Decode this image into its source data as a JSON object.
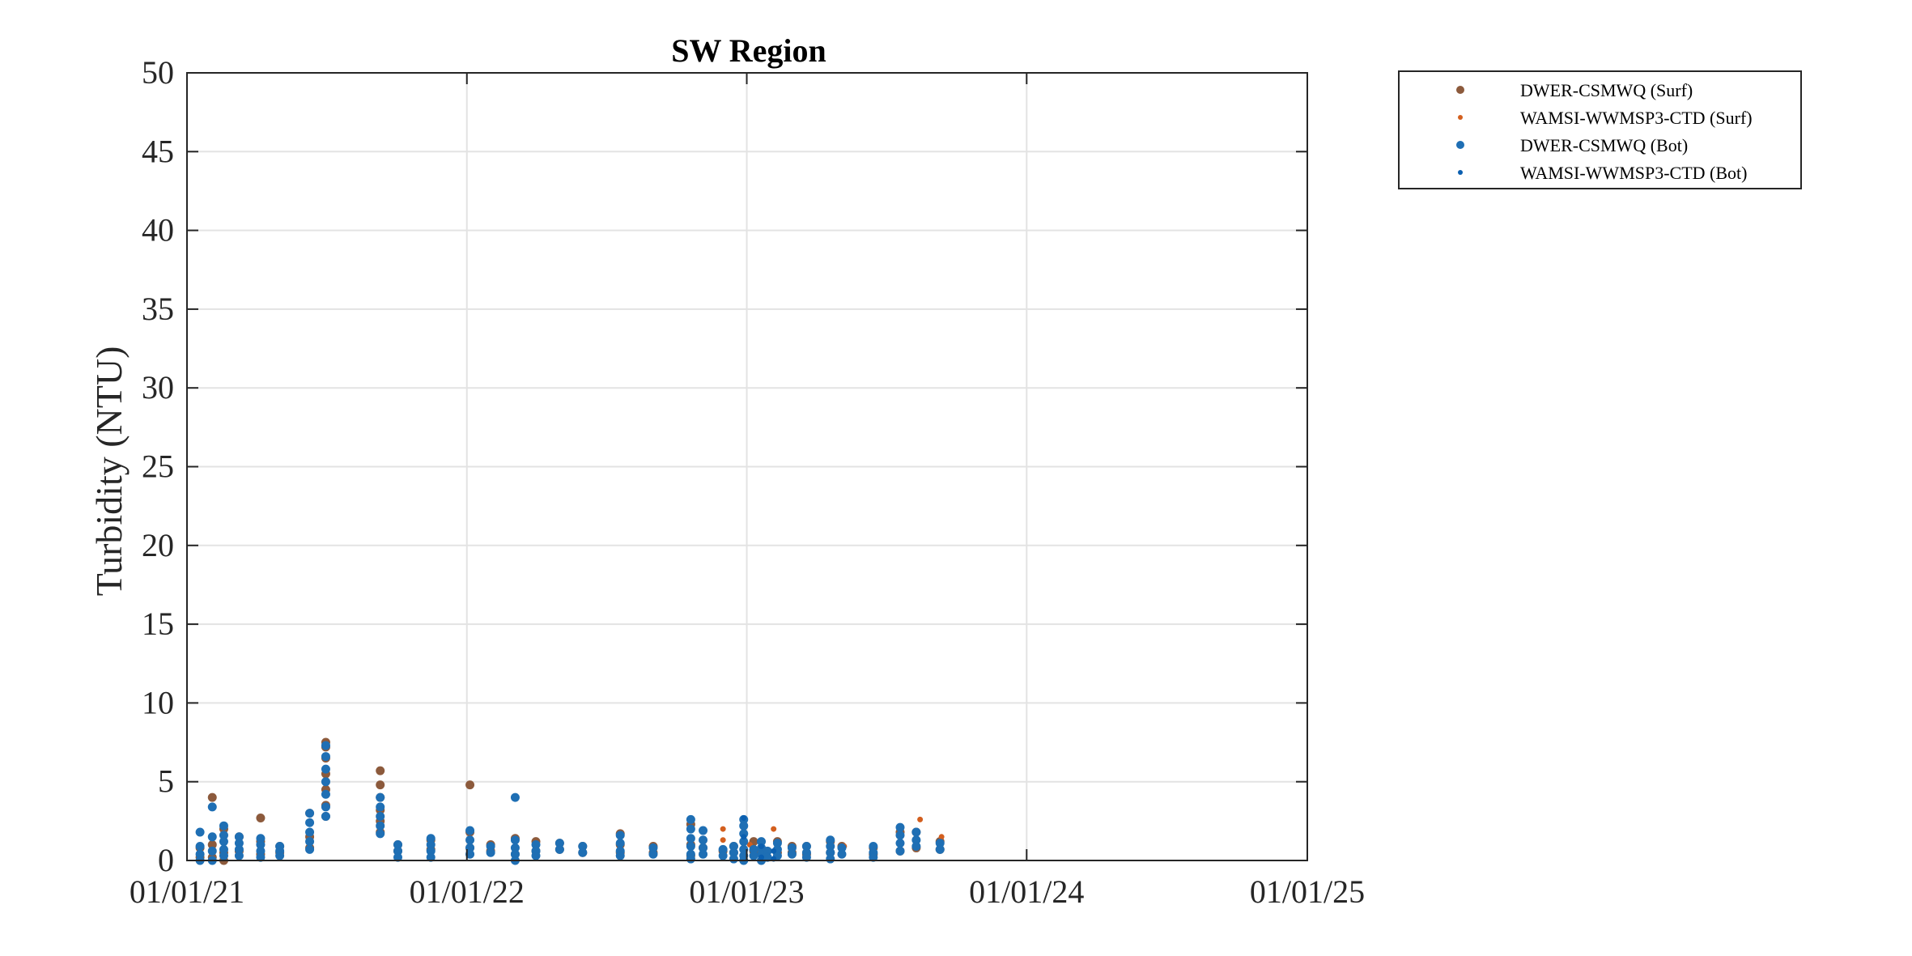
{
  "chart_data": {
    "type": "scatter",
    "title": "SW Region",
    "xlabel": "",
    "ylabel": "Turbidity (NTU)",
    "xlim": [
      "2021-01-01",
      "2025-01-01"
    ],
    "ylim": [
      0,
      50
    ],
    "xticks": [
      "2021-01-01",
      "2022-01-01",
      "2023-01-01",
      "2024-01-01",
      "2025-01-01"
    ],
    "xtick_labels": [
      "01/01/21",
      "01/01/22",
      "01/01/23",
      "01/01/24",
      "01/01/25"
    ],
    "yticks": [
      0,
      5,
      10,
      15,
      20,
      25,
      30,
      35,
      40,
      45,
      50
    ],
    "grid": true,
    "legend_position": "outside-top-right",
    "legend": [
      {
        "label": "DWER-CSMWQ (Surf)",
        "color": "#8c5a3c",
        "marker": "large-dot"
      },
      {
        "label": "WAMSI-WWMSP3-CTD (Surf)",
        "color": "#d35f1e",
        "marker": "small-dot"
      },
      {
        "label": "DWER-CSMWQ (Bot)",
        "color": "#1f6fb4",
        "marker": "large-dot"
      },
      {
        "label": "WAMSI-WWMSP3-CTD (Bot)",
        "color": "#0b5fb0",
        "marker": "small-dot"
      }
    ],
    "series": [
      {
        "name": "DWER-CSMWQ (Surf)",
        "points": [
          [
            "2021-01-18",
            [
              0.2,
              0.8
            ]
          ],
          [
            "2021-02-03",
            [
              4.0,
              1.0,
              0.2
            ]
          ],
          [
            "2021-02-18",
            [
              2.0,
              0.5,
              0.0
            ]
          ],
          [
            "2021-03-10",
            [
              1.5,
              0.6
            ]
          ],
          [
            "2021-04-07",
            [
              2.7,
              1.2,
              0.4
            ]
          ],
          [
            "2021-05-02",
            [
              0.9,
              0.5
            ]
          ],
          [
            "2021-06-10",
            [
              3.0,
              1.5,
              0.8
            ]
          ],
          [
            "2021-07-01",
            [
              7.5,
              7.2,
              6.5,
              5.5,
              4.5,
              3.5,
              2.8
            ]
          ],
          [
            "2021-09-10",
            [
              5.7,
              4.8,
              4.0,
              3.2,
              2.5,
              1.8
            ]
          ],
          [
            "2021-10-03",
            [
              1.0,
              0.6
            ]
          ],
          [
            "2021-11-15",
            [
              1.3,
              0.7
            ]
          ],
          [
            "2022-01-05",
            [
              4.8,
              1.8,
              0.8
            ]
          ],
          [
            "2022-02-01",
            [
              1.0,
              0.6
            ]
          ],
          [
            "2022-03-05",
            [
              1.4,
              0.4
            ]
          ],
          [
            "2022-04-01",
            [
              1.2,
              0.6
            ]
          ],
          [
            "2022-05-02",
            [
              1.1,
              0.7
            ]
          ],
          [
            "2022-06-01",
            [
              0.9,
              0.5
            ]
          ],
          [
            "2022-07-20",
            [
              1.7,
              1.0,
              0.5
            ]
          ],
          [
            "2022-09-01",
            [
              0.9,
              0.5
            ]
          ],
          [
            "2022-10-20",
            [
              2.3,
              1.0,
              0.3
            ]
          ],
          [
            "2022-11-05",
            [
              0.8
            ]
          ],
          [
            "2022-12-01",
            [
              0.6
            ]
          ],
          [
            "2022-12-15",
            [
              0.9,
              0.5
            ]
          ],
          [
            "2023-01-10",
            [
              1.2,
              0.6
            ]
          ],
          [
            "2023-02-10",
            [
              1.2,
              0.5
            ]
          ],
          [
            "2023-03-01",
            [
              0.9,
              0.5
            ]
          ],
          [
            "2023-03-20",
            [
              0.9,
              0.4
            ]
          ],
          [
            "2023-04-20",
            [
              1.2,
              0.5
            ]
          ],
          [
            "2023-05-05",
            [
              0.9
            ]
          ],
          [
            "2023-06-15",
            [
              0.8,
              0.4
            ]
          ],
          [
            "2023-07-20",
            [
              1.8,
              0.6
            ]
          ],
          [
            "2023-08-10",
            [
              1.8,
              0.8
            ]
          ],
          [
            "2023-09-10",
            [
              1.2,
              0.7
            ]
          ]
        ]
      },
      {
        "name": "WAMSI-WWMSP3-CTD (Surf)",
        "points": [
          [
            "2022-12-01",
            [
              2.0,
              1.3
            ]
          ],
          [
            "2023-01-05",
            [
              1.0
            ]
          ],
          [
            "2023-02-05",
            [
              2.0
            ]
          ],
          [
            "2023-05-08",
            [
              0.9
            ]
          ],
          [
            "2023-08-15",
            [
              2.6
            ]
          ],
          [
            "2023-09-12",
            [
              1.5
            ]
          ]
        ]
      },
      {
        "name": "DWER-CSMWQ (Bot)",
        "points": [
          [
            "2021-01-18",
            [
              1.8,
              0.9,
              0.4,
              0.0
            ]
          ],
          [
            "2021-02-03",
            [
              3.4,
              1.5,
              0.6,
              0.0
            ]
          ],
          [
            "2021-02-18",
            [
              2.2,
              1.6,
              1.2,
              0.7,
              0.3
            ]
          ],
          [
            "2021-03-10",
            [
              1.5,
              1.1,
              0.7,
              0.3
            ]
          ],
          [
            "2021-04-07",
            [
              1.4,
              1.0,
              0.6,
              0.2
            ]
          ],
          [
            "2021-05-02",
            [
              0.9,
              0.6,
              0.3
            ]
          ],
          [
            "2021-06-10",
            [
              3.0,
              2.4,
              1.8,
              1.2,
              0.7
            ]
          ],
          [
            "2021-07-01",
            [
              7.3,
              6.6,
              5.8,
              5.0,
              4.2,
              3.4,
              2.8
            ]
          ],
          [
            "2021-09-10",
            [
              4.0,
              3.4,
              2.8,
              2.2,
              1.7
            ]
          ],
          [
            "2021-10-03",
            [
              1.0,
              0.6,
              0.2
            ]
          ],
          [
            "2021-11-15",
            [
              1.4,
              1.0,
              0.6,
              0.2
            ]
          ],
          [
            "2022-01-05",
            [
              1.9,
              1.3,
              0.8,
              0.4
            ]
          ],
          [
            "2022-02-01",
            [
              0.9,
              0.5
            ]
          ],
          [
            "2022-03-05",
            [
              4.0,
              1.3,
              0.8,
              0.4,
              0.0
            ]
          ],
          [
            "2022-04-01",
            [
              1.0,
              0.6,
              0.3
            ]
          ],
          [
            "2022-05-02",
            [
              1.1,
              0.7
            ]
          ],
          [
            "2022-06-01",
            [
              0.9,
              0.5
            ]
          ],
          [
            "2022-07-20",
            [
              1.6,
              1.1,
              0.6,
              0.3
            ]
          ],
          [
            "2022-09-01",
            [
              0.8,
              0.4
            ]
          ],
          [
            "2022-10-20",
            [
              2.6,
              2.0,
              1.4,
              0.9,
              0.4,
              0.1
            ]
          ],
          [
            "2022-11-05",
            [
              1.9,
              1.3,
              0.8,
              0.4
            ]
          ],
          [
            "2022-12-01",
            [
              0.7,
              0.3
            ]
          ],
          [
            "2022-12-15",
            [
              0.9,
              0.5,
              0.1
            ]
          ],
          [
            "2022-12-28",
            [
              2.6,
              2.2,
              1.7,
              1.2,
              0.7,
              0.3,
              0.0
            ]
          ],
          [
            "2023-01-10",
            [
              0.7,
              0.3
            ]
          ],
          [
            "2023-01-20",
            [
              1.2,
              0.8,
              0.4,
              0.0
            ]
          ],
          [
            "2023-01-28",
            [
              0.6,
              0.2
            ]
          ],
          [
            "2023-02-10",
            [
              1.1,
              0.7,
              0.3
            ]
          ],
          [
            "2023-03-01",
            [
              0.8,
              0.4
            ]
          ],
          [
            "2023-03-20",
            [
              0.9,
              0.5,
              0.2
            ]
          ],
          [
            "2023-04-20",
            [
              1.3,
              0.9,
              0.5,
              0.1
            ]
          ],
          [
            "2023-05-05",
            [
              0.8,
              0.4
            ]
          ],
          [
            "2023-06-15",
            [
              0.9,
              0.5,
              0.2
            ]
          ],
          [
            "2023-07-20",
            [
              2.1,
              1.6,
              1.1,
              0.6
            ]
          ],
          [
            "2023-08-10",
            [
              1.8,
              1.3,
              0.9
            ]
          ],
          [
            "2023-09-10",
            [
              1.1,
              0.7
            ]
          ]
        ]
      },
      {
        "name": "WAMSI-WWMSP3-CTD (Bot)",
        "points": [
          [
            "2022-12-28",
            [
              2.7,
              1.5
            ]
          ],
          [
            "2023-01-20",
            [
              0.9,
              0.2
            ]
          ],
          [
            "2023-02-05",
            [
              0.6,
              0.1
            ]
          ]
        ]
      }
    ]
  }
}
